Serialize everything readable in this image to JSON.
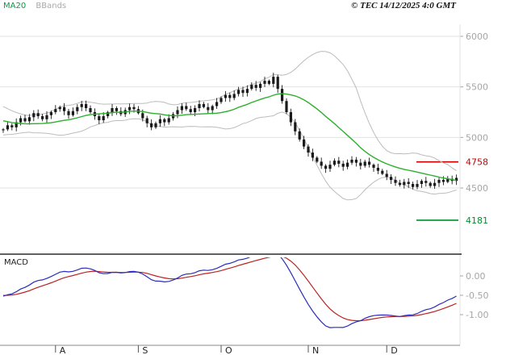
{
  "header": {
    "ma20_label": "MA20",
    "bbands_label": "BBands",
    "copyright": "© TEC 14/12/2025 4:0 GMT"
  },
  "macd_panel": {
    "label": "MACD"
  },
  "colors": {
    "ma20": "#2db02d",
    "bbands": "#bcbcbc",
    "candle": "#1a1a1a",
    "grid": "#e2e2e2",
    "axis_text": "#a6a6a6",
    "level_red": "#cc0000",
    "level_green": "#008f2e",
    "macd_line": "#2b2bbb",
    "macd_signal": "#bb2222",
    "separator": "#000000",
    "month_text": "#222222"
  },
  "chart_data": {
    "type": "candlestick+macd",
    "title": "",
    "legend": [
      "MA20",
      "BBands",
      "MACD"
    ],
    "months": [
      "A",
      "S",
      "O",
      "N",
      "D"
    ],
    "month_start_indices": [
      12,
      31,
      50,
      70,
      88
    ],
    "price_ticks": [
      6000,
      5500,
      5000,
      4500
    ],
    "price_range_shown": [
      3900,
      6150
    ],
    "levels": [
      {
        "value": 4758,
        "label": "4758",
        "color": "red"
      },
      {
        "value": 4181,
        "label": "4181",
        "color": "green"
      }
    ],
    "macd_ticks": [
      {
        "value": 0,
        "label": "0.00"
      },
      {
        "value": -0.5,
        "label": "-0.50"
      },
      {
        "value": -1.0,
        "label": "-1.00"
      }
    ],
    "closes": [
      5080,
      5120,
      5100,
      5150,
      5190,
      5160,
      5200,
      5240,
      5210,
      5180,
      5220,
      5250,
      5280,
      5300,
      5260,
      5220,
      5260,
      5300,
      5330,
      5290,
      5250,
      5210,
      5170,
      5210,
      5250,
      5290,
      5260,
      5230,
      5270,
      5300,
      5280,
      5240,
      5190,
      5140,
      5100,
      5140,
      5180,
      5150,
      5190,
      5230,
      5270,
      5310,
      5280,
      5250,
      5290,
      5330,
      5300,
      5270,
      5310,
      5350,
      5390,
      5420,
      5390,
      5430,
      5470,
      5440,
      5480,
      5520,
      5490,
      5530,
      5560,
      5530,
      5600,
      5480,
      5360,
      5250,
      5150,
      5060,
      4980,
      4910,
      4850,
      4800,
      4760,
      4720,
      4690,
      4730,
      4770,
      4740,
      4710,
      4750,
      4780,
      4750,
      4720,
      4760,
      4730,
      4700,
      4670,
      4640,
      4610,
      4580,
      4550,
      4530,
      4560,
      4540,
      4510,
      4540,
      4570,
      4550,
      4520,
      4550,
      4580,
      4560,
      4590,
      4570,
      4600
    ],
    "warmup_closes_for_indicators": [
      5400,
      5380,
      5360,
      5350,
      5330,
      5310,
      5300,
      5280,
      5260,
      5250,
      5230,
      5220,
      5200,
      5190,
      5170,
      5160,
      5150,
      5140,
      5120,
      5110,
      5100,
      5090,
      5090,
      5080,
      5080
    ],
    "indicators": {
      "ma_period": 20,
      "bollinger_k": 2,
      "macd_periods": [
        12,
        26,
        9
      ],
      "macd_display_divisor": 130
    }
  }
}
